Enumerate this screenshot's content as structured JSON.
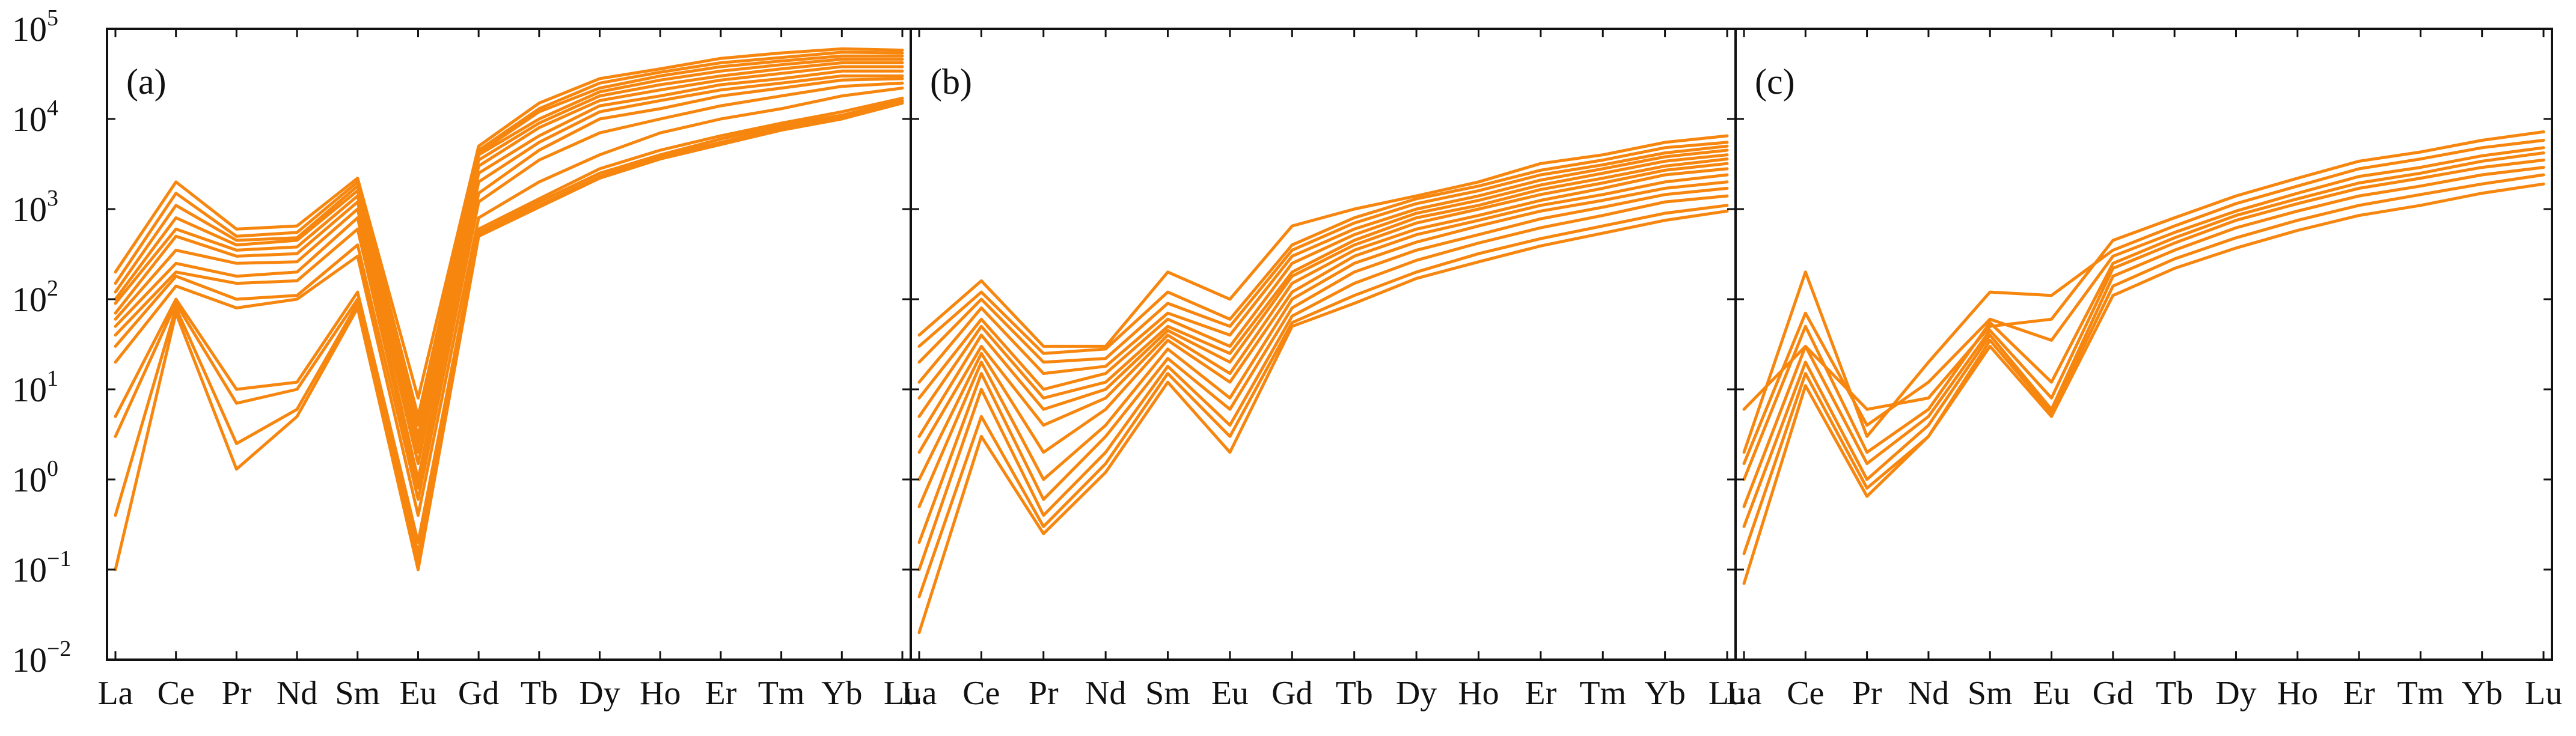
{
  "chart_data": [
    {
      "type": "line",
      "label": "(a)",
      "y_scale": "log",
      "ylim": [
        0.01,
        100000
      ],
      "y_tick_labels": [
        {
          "base": "10",
          "exp": "5"
        },
        {
          "base": "10",
          "exp": "4"
        },
        {
          "base": "10",
          "exp": "3"
        },
        {
          "base": "10",
          "exp": "2"
        },
        {
          "base": "10",
          "exp": "1"
        },
        {
          "base": "10",
          "exp": "0"
        },
        {
          "base": "10",
          "exp": "−1"
        },
        {
          "base": "10",
          "exp": "−2"
        }
      ],
      "categories": [
        "La",
        "Ce",
        "Pr",
        "Nd",
        "Sm",
        "Eu",
        "Gd",
        "Tb",
        "Dy",
        "Ho",
        "Er",
        "Tm",
        "Yb",
        "Lu"
      ],
      "line_color": "#F7860F",
      "series": [
        {
          "values": [
            200,
            2000,
            600,
            650,
            2200,
            8,
            5000,
            15000,
            28000,
            36000,
            47000,
            54000,
            60000,
            58000
          ]
        },
        {
          "values": [
            150,
            1500,
            500,
            550,
            2000,
            5,
            4500,
            13000,
            25000,
            33000,
            42000,
            48000,
            55000,
            54000
          ]
        },
        {
          "values": [
            120,
            1100,
            450,
            480,
            1800,
            4,
            4200,
            12000,
            22000,
            30000,
            38000,
            44000,
            50000,
            50000
          ]
        },
        {
          "values": [
            100,
            800,
            400,
            450,
            1600,
            3,
            4000,
            10000,
            20000,
            27000,
            34000,
            40000,
            46000,
            46000
          ]
        },
        {
          "values": [
            90,
            600,
            350,
            380,
            1400,
            2.5,
            3500,
            9000,
            18000,
            24000,
            30000,
            36000,
            42000,
            42000
          ]
        },
        {
          "values": [
            70,
            500,
            300,
            320,
            1200,
            2,
            3000,
            8000,
            16000,
            21000,
            27000,
            32000,
            38000,
            38000
          ]
        },
        {
          "values": [
            60,
            350,
            250,
            260,
            1000,
            1.5,
            2500,
            6500,
            14000,
            18000,
            24000,
            28000,
            34000,
            34000
          ]
        },
        {
          "values": [
            50,
            250,
            180,
            200,
            800,
            1,
            2000,
            5500,
            12000,
            16000,
            21000,
            25000,
            30000,
            30000
          ]
        },
        {
          "values": [
            40,
            200,
            150,
            160,
            600,
            0.8,
            1500,
            4500,
            10000,
            13000,
            18000,
            22000,
            27000,
            28000
          ]
        },
        {
          "values": [
            30,
            180,
            100,
            110,
            400,
            0.6,
            1200,
            3500,
            7000,
            10000,
            14000,
            18000,
            23000,
            25000
          ]
        },
        {
          "values": [
            20,
            140,
            80,
            100,
            300,
            0.4,
            800,
            2000,
            4000,
            7000,
            10000,
            13000,
            18000,
            22000
          ]
        },
        {
          "values": [
            5,
            100,
            10,
            12,
            120,
            0.2,
            600,
            1300,
            2800,
            4500,
            6500,
            9000,
            12000,
            17000
          ]
        },
        {
          "values": [
            3,
            90,
            7,
            10,
            100,
            0.15,
            550,
            1200,
            2500,
            4000,
            6000,
            8500,
            11000,
            16000
          ]
        },
        {
          "values": [
            0.4,
            80,
            2.5,
            6,
            90,
            0.12,
            520,
            1100,
            2300,
            3800,
            5500,
            8000,
            10500,
            15500
          ]
        },
        {
          "values": [
            0.1,
            70,
            1.3,
            5,
            80,
            0.1,
            500,
            1050,
            2200,
            3600,
            5200,
            7500,
            10000,
            15000
          ]
        }
      ]
    },
    {
      "type": "line",
      "label": "(b)",
      "y_scale": "log",
      "ylim": [
        0.01,
        100000
      ],
      "categories": [
        "La",
        "Ce",
        "Pr",
        "Nd",
        "Sm",
        "Eu",
        "Gd",
        "Tb",
        "Dy",
        "Ho",
        "Er",
        "Tm",
        "Yb",
        "Lu"
      ],
      "line_color": "#F7860F",
      "series": [
        {
          "values": [
            40,
            160,
            30,
            30,
            200,
            100,
            650,
            1000,
            1400,
            2000,
            3200,
            4000,
            5500,
            6500
          ]
        },
        {
          "values": [
            30,
            120,
            25,
            28,
            120,
            60,
            400,
            800,
            1300,
            1800,
            2700,
            3500,
            4800,
            5500
          ]
        },
        {
          "values": [
            20,
            100,
            20,
            22,
            90,
            50,
            350,
            700,
            1150,
            1600,
            2400,
            3100,
            4200,
            5000
          ]
        },
        {
          "values": [
            12,
            80,
            15,
            18,
            70,
            40,
            300,
            600,
            1000,
            1400,
            2100,
            2800,
            3800,
            4500
          ]
        },
        {
          "values": [
            8,
            60,
            10,
            15,
            60,
            30,
            250,
            520,
            900,
            1250,
            1850,
            2500,
            3400,
            4000
          ]
        },
        {
          "values": [
            5,
            50,
            8,
            12,
            50,
            25,
            200,
            450,
            800,
            1100,
            1650,
            2200,
            3000,
            3600
          ]
        },
        {
          "values": [
            3,
            40,
            6,
            10,
            45,
            20,
            180,
            400,
            700,
            1000,
            1450,
            1950,
            2700,
            3200
          ]
        },
        {
          "values": [
            2,
            30,
            4,
            8,
            40,
            15,
            150,
            350,
            600,
            850,
            1250,
            1700,
            2400,
            2800
          ]
        },
        {
          "values": [
            1,
            25,
            2,
            6,
            35,
            12,
            120,
            300,
            520,
            750,
            1100,
            1450,
            2000,
            2400
          ]
        },
        {
          "values": [
            0.5,
            20,
            1,
            4,
            28,
            8,
            100,
            250,
            430,
            650,
            950,
            1250,
            1700,
            2000
          ]
        },
        {
          "values": [
            0.2,
            15,
            0.6,
            3,
            22,
            6,
            80,
            200,
            350,
            520,
            780,
            1050,
            1450,
            1700
          ]
        },
        {
          "values": [
            0.1,
            10,
            0.4,
            2,
            18,
            4,
            65,
            150,
            270,
            420,
            620,
            850,
            1200,
            1400
          ]
        },
        {
          "values": [
            0.05,
            5,
            0.3,
            1.5,
            15,
            3,
            55,
            110,
            200,
            320,
            470,
            650,
            900,
            1100
          ]
        },
        {
          "values": [
            0.02,
            3,
            0.25,
            1.2,
            12,
            2,
            50,
            90,
            170,
            260,
            390,
            540,
            750,
            950
          ]
        }
      ]
    },
    {
      "type": "line",
      "label": "(c)",
      "y_scale": "log",
      "ylim": [
        0.01,
        100000
      ],
      "categories": [
        "La",
        "Ce",
        "Pr",
        "Nd",
        "Sm",
        "Eu",
        "Gd",
        "Tb",
        "Dy",
        "Ho",
        "Er",
        "Tm",
        "Yb",
        "Lu"
      ],
      "line_color": "#F7860F",
      "series": [
        {
          "values": [
            6,
            30,
            6,
            8,
            50,
            60,
            450,
            800,
            1400,
            2200,
            3400,
            4300,
            5800,
            7200
          ]
        },
        {
          "values": [
            2,
            200,
            3,
            20,
            120,
            110,
            350,
            650,
            1150,
            1800,
            2800,
            3600,
            4800,
            5800
          ]
        },
        {
          "values": [
            1.5,
            70,
            4,
            12,
            60,
            35,
            300,
            550,
            950,
            1500,
            2300,
            2900,
            3900,
            4800
          ]
        },
        {
          "values": [
            1,
            50,
            2,
            6,
            55,
            12,
            250,
            480,
            850,
            1300,
            1950,
            2500,
            3400,
            4200
          ]
        },
        {
          "values": [
            0.5,
            30,
            1.5,
            5,
            45,
            8,
            220,
            420,
            750,
            1150,
            1700,
            2200,
            2900,
            3500
          ]
        },
        {
          "values": [
            0.3,
            20,
            1,
            4,
            40,
            6,
            180,
            350,
            620,
            950,
            1400,
            1800,
            2400,
            2900
          ]
        },
        {
          "values": [
            0.15,
            15,
            0.8,
            3,
            35,
            5.5,
            140,
            280,
            480,
            750,
            1100,
            1450,
            1900,
            2400
          ]
        },
        {
          "values": [
            0.07,
            11,
            0.65,
            3,
            30,
            5,
            110,
            220,
            370,
            580,
            850,
            1100,
            1500,
            1900
          ]
        }
      ]
    }
  ]
}
